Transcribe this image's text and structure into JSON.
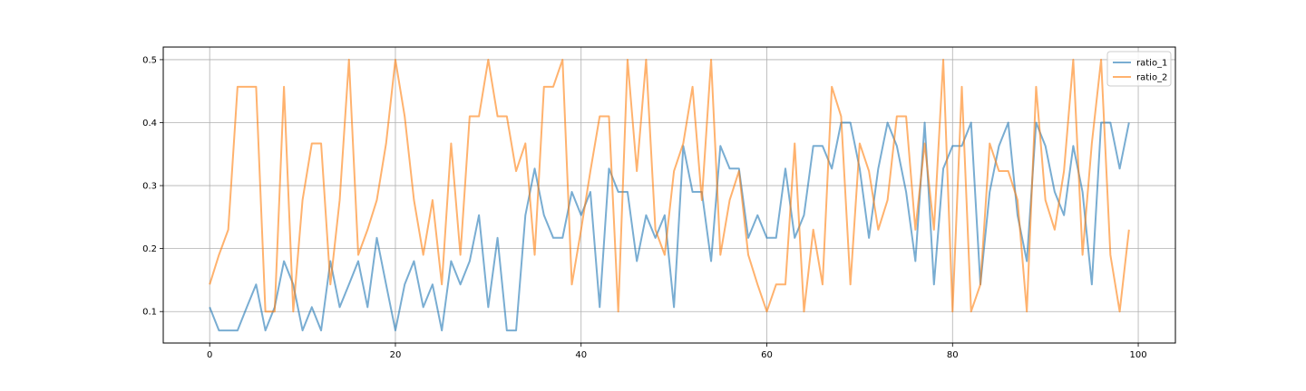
{
  "chart_data": {
    "type": "line",
    "title": "",
    "xlabel": "",
    "ylabel": "",
    "xlim": [
      -5,
      104
    ],
    "ylim": [
      0.05,
      0.52
    ],
    "xticks": [
      0,
      20,
      40,
      60,
      80,
      100
    ],
    "yticks": [
      0.1,
      0.2,
      0.3,
      0.4,
      0.5
    ],
    "grid": true,
    "legend_position": "top-right",
    "series": [
      {
        "name": "ratio_1",
        "color": "#1f77b4",
        "values": [
          0.107,
          0.07,
          0.07,
          0.07,
          0.107,
          0.143,
          0.07,
          0.107,
          0.18,
          0.143,
          0.07,
          0.107,
          0.07,
          0.18,
          0.107,
          0.143,
          0.18,
          0.107,
          0.217,
          0.143,
          0.07,
          0.143,
          0.18,
          0.107,
          0.143,
          0.07,
          0.18,
          0.143,
          0.18,
          0.253,
          0.107,
          0.217,
          0.07,
          0.07,
          0.253,
          0.327,
          0.253,
          0.217,
          0.217,
          0.29,
          0.253,
          0.29,
          0.107,
          0.327,
          0.29,
          0.29,
          0.18,
          0.253,
          0.217,
          0.253,
          0.107,
          0.363,
          0.29,
          0.29,
          0.18,
          0.363,
          0.327,
          0.327,
          0.217,
          0.253,
          0.217,
          0.217,
          0.327,
          0.217,
          0.253,
          0.363,
          0.363,
          0.327,
          0.4,
          0.4,
          0.327,
          0.217,
          0.327,
          0.4,
          0.363,
          0.29,
          0.18,
          0.4,
          0.143,
          0.327,
          0.363,
          0.363,
          0.4,
          0.143,
          0.29,
          0.363,
          0.4,
          0.253,
          0.18,
          0.4,
          0.363,
          0.29,
          0.253,
          0.363,
          0.29,
          0.143,
          0.4,
          0.4,
          0.327,
          0.4
        ]
      },
      {
        "name": "ratio_2",
        "color": "#ff7f0e",
        "values": [
          0.143,
          0.19,
          0.23,
          0.457,
          0.457,
          0.457,
          0.1,
          0.1,
          0.457,
          0.1,
          0.277,
          0.367,
          0.367,
          0.143,
          0.277,
          0.5,
          0.19,
          0.23,
          0.277,
          0.367,
          0.5,
          0.41,
          0.277,
          0.19,
          0.277,
          0.143,
          0.367,
          0.19,
          0.41,
          0.41,
          0.5,
          0.41,
          0.41,
          0.323,
          0.367,
          0.19,
          0.457,
          0.457,
          0.5,
          0.143,
          0.23,
          0.323,
          0.41,
          0.41,
          0.1,
          0.5,
          0.323,
          0.5,
          0.23,
          0.19,
          0.323,
          0.367,
          0.457,
          0.277,
          0.5,
          0.19,
          0.277,
          0.323,
          0.19,
          0.143,
          0.1,
          0.143,
          0.143,
          0.367,
          0.1,
          0.23,
          0.143,
          0.457,
          0.41,
          0.143,
          0.367,
          0.323,
          0.23,
          0.277,
          0.41,
          0.41,
          0.23,
          0.367,
          0.23,
          0.5,
          0.1,
          0.457,
          0.1,
          0.143,
          0.367,
          0.323,
          0.323,
          0.277,
          0.1,
          0.457,
          0.277,
          0.23,
          0.323,
          0.5,
          0.19,
          0.367,
          0.5,
          0.19,
          0.1,
          0.23
        ]
      }
    ]
  }
}
